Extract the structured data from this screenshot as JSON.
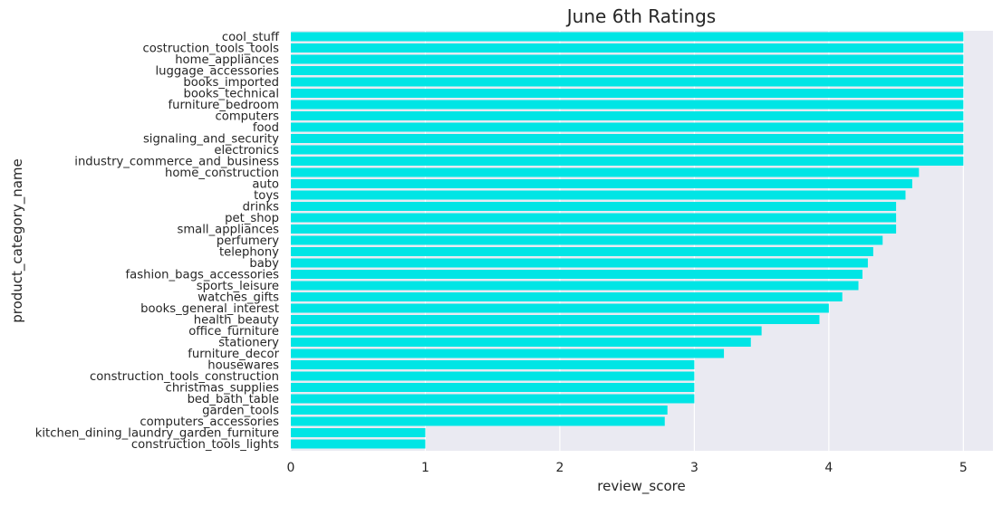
{
  "chart_data": {
    "type": "bar",
    "orientation": "horizontal",
    "title": "June 6th Ratings",
    "xlabel": "review_score",
    "ylabel": "product_category_name",
    "xlim": [
      0,
      5.22
    ],
    "xticks": [
      "0",
      "1",
      "2",
      "3",
      "4",
      "5"
    ],
    "grid": true,
    "bar_color": "#00e5e5",
    "background_color": "#eaeaf2",
    "categories": [
      "cool_stuff",
      "costruction_tools_tools",
      "home_appliances",
      "luggage_accessories",
      "books_imported",
      "books_technical",
      "furniture_bedroom",
      "computers",
      "food",
      "signaling_and_security",
      "electronics",
      "industry_commerce_and_business",
      "home_construction",
      "auto",
      "toys",
      "drinks",
      "pet_shop",
      "small_appliances",
      "perfumery",
      "telephony",
      "baby",
      "fashion_bags_accessories",
      "sports_leisure",
      "watches_gifts",
      "books_general_interest",
      "health_beauty",
      "office_furniture",
      "stationery",
      "furniture_decor",
      "housewares",
      "construction_tools_construction",
      "christmas_supplies",
      "bed_bath_table",
      "garden_tools",
      "computers_accessories",
      "kitchen_dining_laundry_garden_furniture",
      "construction_tools_lights"
    ],
    "values": [
      5,
      5,
      5,
      5,
      5,
      5,
      5,
      5,
      5,
      5,
      5,
      5,
      4.67,
      4.62,
      4.57,
      4.5,
      4.5,
      4.5,
      4.4,
      4.33,
      4.29,
      4.25,
      4.22,
      4.1,
      4.0,
      3.93,
      3.5,
      3.42,
      3.22,
      3.0,
      3.0,
      3.0,
      3.0,
      2.8,
      2.78,
      1.0,
      1.0
    ]
  }
}
